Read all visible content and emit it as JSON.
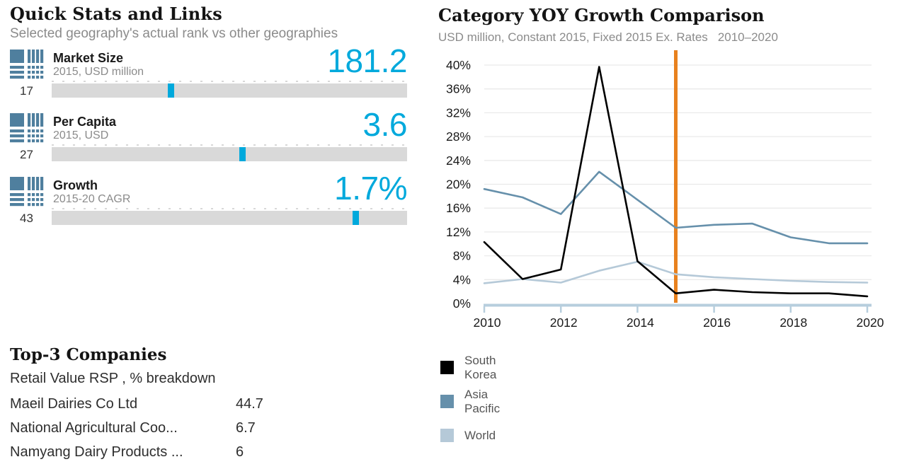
{
  "quick_stats": {
    "title": "Quick Stats and Links",
    "subtitle": "Selected geography's actual rank vs other geographies",
    "items": [
      {
        "label": "Market Size",
        "sublabel": "2015, USD million",
        "value": "181.2",
        "rank": "17",
        "marker_pct": 33.5
      },
      {
        "label": "Per Capita",
        "sublabel": "2015, USD",
        "value": "3.6",
        "rank": "27",
        "marker_pct": 53.6
      },
      {
        "label": "Growth",
        "sublabel": "2015-20 CAGR",
        "value": "1.7%",
        "rank": "43",
        "marker_pct": 85.5
      }
    ]
  },
  "companies": {
    "title": "Top-3 Companies",
    "subtitle": "Retail Value RSP , % breakdown",
    "rows": [
      {
        "name": "Maeil Dairies Co Ltd",
        "value": "44.7"
      },
      {
        "name": "National Agricultural Coo...",
        "value": "6.7"
      },
      {
        "name": "Namyang Dairy Products ...",
        "value": "6"
      }
    ]
  },
  "chart": {
    "title": "Category YOY Growth Comparison",
    "subtitle": "USD million, Constant 2015, Fixed 2015 Ex. Rates",
    "period": "2010–2020"
  },
  "chart_data": {
    "type": "line",
    "x": [
      2010,
      2011,
      2012,
      2013,
      2014,
      2015,
      2016,
      2017,
      2018,
      2019,
      2020
    ],
    "series": [
      {
        "name": "South Korea",
        "color": "#000000",
        "values": [
          10.3,
          4.1,
          5.7,
          39.7,
          7.1,
          1.7,
          2.3,
          1.9,
          1.7,
          1.7,
          1.2
        ]
      },
      {
        "name": "Asia Pacific",
        "color": "#6690ab",
        "values": [
          19.2,
          17.8,
          15.0,
          22.1,
          17.4,
          12.7,
          13.2,
          13.4,
          11.1,
          10.1,
          10.1
        ]
      },
      {
        "name": "World",
        "color": "#b5c9d8",
        "values": [
          3.4,
          4.1,
          3.5,
          5.5,
          7.0,
          4.9,
          4.4,
          4.1,
          3.8,
          3.6,
          3.5
        ]
      }
    ],
    "ylim": [
      0,
      40
    ],
    "ytick_step": 4,
    "ytick_suffix": "%",
    "xticks": [
      2010,
      2012,
      2014,
      2016,
      2018,
      2020
    ],
    "highlight_x": 2015,
    "highlight_color": "#e8811e",
    "grid": true,
    "legend_position": "bottom-left"
  },
  "colors": {
    "accent": "#00a9dc",
    "icon_blue": "#4f7f9e",
    "bar_gray": "#d9d9d9",
    "axis_blue": "#b7cedd",
    "gridline": "#eaeaea",
    "tick_label": "#1a1a1a"
  }
}
